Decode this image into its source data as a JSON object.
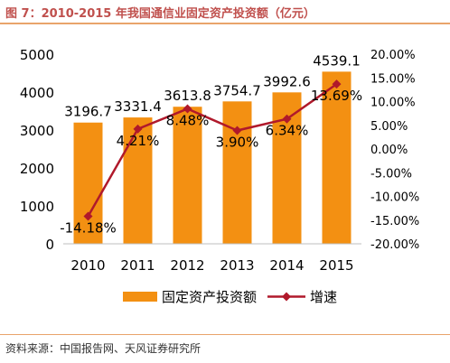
{
  "header": {
    "title": "图 7：2010-2015 年我国通信业固定资产投资额（亿元）"
  },
  "footer": {
    "source": "资料来源：中国报告网、天风证券研究所"
  },
  "colors": {
    "bar": "#f39012",
    "line": "#b0192b",
    "rule": "#e9a46b",
    "title": "#c0504d"
  },
  "chart_data": {
    "type": "bar",
    "categories": [
      "2010",
      "2011",
      "2012",
      "2013",
      "2014",
      "2015"
    ],
    "series": [
      {
        "name": "固定资产投资额",
        "type": "bar",
        "axis": "left",
        "values": [
          3196.7,
          3331.4,
          3613.8,
          3754.7,
          3992.6,
          4539.1
        ],
        "labels": [
          "3196.7",
          "3331.4",
          "3613.8",
          "3754.7",
          "3992.6",
          "4539.1"
        ]
      },
      {
        "name": "增速",
        "type": "line",
        "axis": "right",
        "values": [
          -14.18,
          4.21,
          8.48,
          3.9,
          6.34,
          13.69
        ],
        "labels": [
          "-14.18%",
          "4.21%",
          "8.48%",
          "3.90%",
          "6.34%",
          "13.69%"
        ]
      }
    ],
    "ylim_left": [
      0,
      5000
    ],
    "yticks_left": [
      "0",
      "1000",
      "2000",
      "3000",
      "4000",
      "5000"
    ],
    "ylim_right": [
      -20,
      20
    ],
    "yticks_right": [
      "-20.00%",
      "-15.00%",
      "-10.00%",
      "-5.00%",
      "0.00%",
      "5.00%",
      "10.00%",
      "15.00%",
      "20.00%"
    ],
    "legend_position": "bottom",
    "grid": false
  }
}
